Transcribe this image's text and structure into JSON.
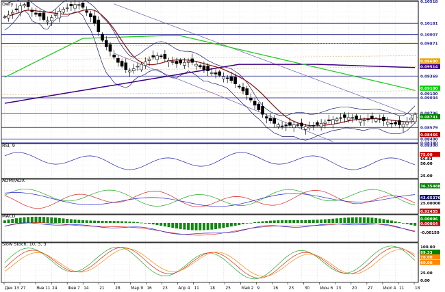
{
  "panels": {
    "price": {
      "title": "Daily",
      "price_labels": [
        "0.10518",
        "0.10181",
        "0.10007",
        "0.09871",
        "0.09600",
        "0.09514",
        "0.09369",
        "0.09180",
        "0.09100",
        "0.09034",
        "0.08796",
        "0.08741",
        "0.08579",
        "0.08466",
        "0.08400",
        "0.08340",
        "0.08300"
      ],
      "highlight_labels": [
        {
          "text": "0.09600",
          "color": "#f0a000"
        },
        {
          "text": "0.09514",
          "color": "#400080"
        },
        {
          "text": "0.09180",
          "color": "#00cc00"
        },
        {
          "text": "0.08741",
          "color": "#008000"
        },
        {
          "text": "0.08466",
          "color": "#aa0000"
        }
      ]
    },
    "rsi": {
      "title": "RSI, 9",
      "labels": [
        "75.00",
        "66.83",
        "50.00",
        "25.00"
      ]
    },
    "adx": {
      "title": "ADMI/ADX",
      "labels": [
        "36.35488",
        "43.65376",
        "25.00000",
        "0.92455"
      ]
    },
    "macd": {
      "title": "MACD",
      "labels": [
        "0.00096",
        "0.00054",
        "-0.00150"
      ]
    },
    "stoch": {
      "title": "Slow Stoch, 10, 3, 3",
      "labels": [
        "100.00",
        "89.33",
        "78.00",
        "60.00",
        "25.00",
        "0.00"
      ]
    }
  },
  "x_axis": {
    "labels": [
      "Дек 13",
      "27",
      "Янв 11",
      "24",
      "Фев 7",
      "14",
      "21",
      "28",
      "Мар 9",
      "16",
      "23",
      "Апр 4",
      "11",
      "18",
      "25",
      "Май 2",
      "9",
      "16",
      "23",
      "30",
      "Июн 6",
      "13",
      "20",
      "27",
      "Июл 4",
      "11",
      "18"
    ]
  },
  "chart_data": {
    "type": "candlestick",
    "title": "Daily",
    "y_range": [
      0.0835,
      0.1052
    ],
    "close": [
      0.1028,
      0.1031,
      0.1035,
      0.1039,
      0.1045,
      0.1047,
      0.1044,
      0.1036,
      0.1032,
      0.1029,
      0.1024,
      0.1022,
      0.1027,
      0.1032,
      0.1037,
      0.104,
      0.1042,
      0.1045,
      0.1047,
      0.1046,
      0.1043,
      0.1035,
      0.1028,
      0.1018,
      0.1005,
      0.0992,
      0.0982,
      0.0975,
      0.0966,
      0.0958,
      0.0952,
      0.0947,
      0.0945,
      0.0948,
      0.0952,
      0.0955,
      0.0959,
      0.0963,
      0.0966,
      0.0968,
      0.0967,
      0.0964,
      0.0961,
      0.0958,
      0.0956,
      0.0957,
      0.0958,
      0.096,
      0.0958,
      0.0955,
      0.0951,
      0.0947,
      0.0945,
      0.0942,
      0.094,
      0.0938,
      0.0936,
      0.0934,
      0.093,
      0.0925,
      0.092,
      0.0914,
      0.0908,
      0.09,
      0.0892,
      0.0885,
      0.0878,
      0.0872,
      0.0868,
      0.0864,
      0.0862,
      0.086,
      0.086,
      0.0861,
      0.0862,
      0.0861,
      0.086,
      0.0859,
      0.0859,
      0.086,
      0.0862,
      0.0864,
      0.0866,
      0.0868,
      0.087,
      0.0871,
      0.0872,
      0.0873,
      0.0873,
      0.0872,
      0.0871,
      0.087,
      0.0869,
      0.087,
      0.0871,
      0.0871,
      0.087,
      0.0868,
      0.0866,
      0.0864,
      0.0863,
      0.0862,
      0.0863,
      0.0866,
      0.0872,
      0.0878
    ],
    "bb_upper": [
      0.1048,
      0.105,
      0.1052,
      0.1053,
      0.1055,
      0.1056,
      0.1055,
      0.105,
      0.1045,
      0.1041,
      0.1038,
      0.1035,
      0.1036,
      0.104,
      0.1046,
      0.1051,
      0.1055,
      0.1057,
      0.1058,
      0.1057,
      0.1056,
      0.1052,
      0.1048,
      0.1043,
      0.1036,
      0.1028,
      0.1022,
      0.1015,
      0.1005,
      0.0993,
      0.0983,
      0.0975,
      0.0968,
      0.0966,
      0.0969,
      0.0973,
      0.0978,
      0.0982,
      0.0986,
      0.0989,
      0.099,
      0.0989,
      0.0986,
      0.0982,
      0.0978,
      0.0976,
      0.0975,
      0.0975,
      0.0974,
      0.0972,
      0.0969,
      0.0965,
      0.0961,
      0.0958,
      0.0955,
      0.0953,
      0.0951,
      0.095,
      0.0948,
      0.0944,
      0.094,
      0.0934,
      0.0927,
      0.0918,
      0.0908,
      0.0899,
      0.0891,
      0.0886,
      0.0882,
      0.0879,
      0.0877,
      0.0876,
      0.0876,
      0.0878,
      0.088,
      0.0881,
      0.0881,
      0.088,
      0.0878,
      0.0878,
      0.0879,
      0.0881,
      0.0883,
      0.0885,
      0.0887,
      0.0888,
      0.0889,
      0.0889,
      0.0889,
      0.0888,
      0.0887,
      0.0886,
      0.0885,
      0.0885,
      0.0886,
      0.0886,
      0.0885,
      0.0884,
      0.0882,
      0.088,
      0.0878,
      0.0876,
      0.0876,
      0.0879,
      0.0885,
      0.0891
    ],
    "bb_lower": [
      0.1008,
      0.1012,
      0.1018,
      0.1025,
      0.1033,
      0.1038,
      0.1033,
      0.1022,
      0.1019,
      0.1017,
      0.101,
      0.1009,
      0.1018,
      0.1024,
      0.1028,
      0.1029,
      0.1029,
      0.1033,
      0.1036,
      0.1035,
      0.103,
      0.1018,
      0.1008,
      0.0993,
      0.0974,
      0.0956,
      0.0942,
      0.0935,
      0.0927,
      0.0923,
      0.0921,
      0.0919,
      0.0922,
      0.093,
      0.0935,
      0.0937,
      0.094,
      0.0944,
      0.0946,
      0.0947,
      0.0944,
      0.0939,
      0.0936,
      0.0934,
      0.0934,
      0.0938,
      0.0941,
      0.0945,
      0.0942,
      0.0938,
      0.0933,
      0.0929,
      0.0929,
      0.0926,
      0.0925,
      0.0923,
      0.0921,
      0.0918,
      0.0912,
      0.0906,
      0.09,
      0.0894,
      0.0889,
      0.0882,
      0.0876,
      0.0871,
      0.0865,
      0.0858,
      0.0854,
      0.0849,
      0.0847,
      0.0844,
      0.0844,
      0.0844,
      0.0844,
      0.0841,
      0.0839,
      0.0838,
      0.084,
      0.0842,
      0.0845,
      0.0847,
      0.0849,
      0.0851,
      0.0853,
      0.0854,
      0.0855,
      0.0857,
      0.0857,
      0.0856,
      0.0855,
      0.0854,
      0.0853,
      0.0855,
      0.0856,
      0.0856,
      0.0855,
      0.0852,
      0.085,
      0.0848,
      0.0848,
      0.0848,
      0.085,
      0.0853,
      0.0859,
      0.0865
    ]
  }
}
